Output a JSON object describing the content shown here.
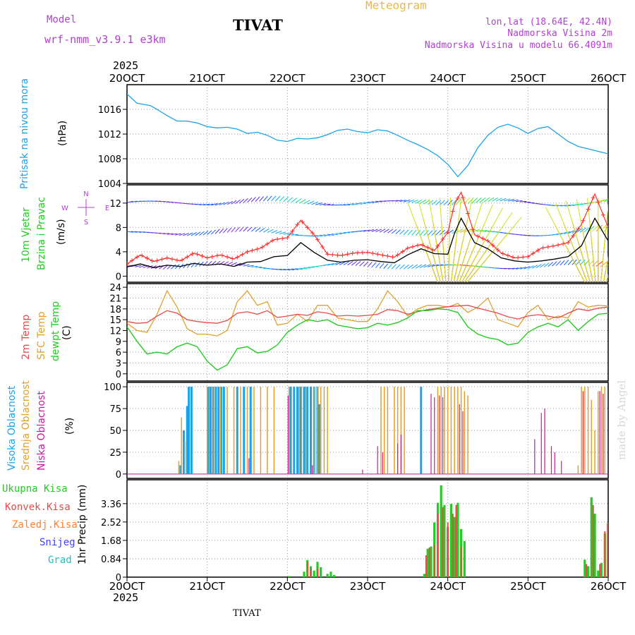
{
  "header": {
    "model_label": "Model",
    "model_name": "wrf-nmm_v3.9.1 e3km",
    "station": "TIVAT",
    "meteogram": "Meteogram",
    "lonlat": "lon,lat (18.64E, 42.4N)",
    "altitude": "Nadmorska Visina 2m",
    "model_altitude": "Nadmorska Visina u modelu 66.4091m",
    "year_top": "2025",
    "year_bottom": "2025",
    "footer_station": "TIVAT",
    "credit": "made by Angel"
  },
  "colors": {
    "pressure": "#1aa3e8",
    "wind_speed": "#000000",
    "gust": "#ff3030",
    "temp2m": "#e84a4a",
    "sfc": "#e0a030",
    "dewpt": "#22cc22",
    "high_cloud": "#1aa3e8",
    "mid_cloud": "#e0a030",
    "low_cloud": "#cc1aa0",
    "total_precip": "#22cc22",
    "conv_precip": "#e84a4a",
    "frozen": "#ff8030",
    "snow": "#4040ff",
    "hail": "#20c0c0",
    "label_purple": "#b040d0"
  },
  "chart_data": [
    {
      "type": "line",
      "name": "pressure",
      "title": "Pritisak na nivou mora",
      "ylabel": "(hPa)",
      "ylim": [
        1004,
        1020
      ],
      "yticks": [
        "1016",
        "1012",
        "1008",
        "1004"
      ],
      "xlim": [
        0,
        144
      ],
      "x": [
        0,
        1,
        3,
        5,
        7,
        9,
        12,
        15,
        18,
        21,
        24,
        27,
        30,
        33,
        36,
        39,
        42,
        45,
        48,
        51,
        54,
        57,
        60,
        63,
        66,
        69,
        72,
        75,
        78,
        81,
        84,
        87,
        90,
        93,
        96,
        99,
        102,
        105,
        108,
        111,
        114,
        117,
        120,
        123,
        126,
        129,
        132,
        135,
        138,
        141,
        144
      ],
      "values": [
        1018.5,
        1018.0,
        1017.0,
        1016.8,
        1016.6,
        1016.0,
        1015.0,
        1014.1,
        1014.1,
        1013.8,
        1013.2,
        1013.0,
        1013.1,
        1012.8,
        1012.1,
        1012.3,
        1011.8,
        1011.0,
        1010.8,
        1011.3,
        1011.2,
        1011.4,
        1011.9,
        1012.6,
        1012.8,
        1012.4,
        1012.2,
        1012.7,
        1012.5,
        1011.8,
        1011.0,
        1010.3,
        1009.5,
        1008.5,
        1007.1,
        1005.1,
        1006.9,
        1009.8,
        1011.8,
        1013.1,
        1013.6,
        1013.0,
        1012.1,
        1012.9,
        1013.2,
        1012.0,
        1010.8,
        1010.0,
        1009.6,
        1009.2,
        1008.8
      ]
    },
    {
      "type": "line",
      "name": "wind",
      "title": "10m Vjetar",
      "subtitle": "Brzina i Pravac",
      "ylabel": "(m/s)",
      "ylim": [
        -1,
        15
      ],
      "yticks": [
        "12",
        "8",
        "4",
        "0"
      ],
      "compass": {
        "n": "N",
        "s": "S",
        "w": "W",
        "e": "E"
      },
      "x": [
        0,
        4,
        8,
        12,
        16,
        20,
        24,
        28,
        32,
        36,
        40,
        44,
        48,
        52,
        56,
        60,
        64,
        68,
        72,
        76,
        80,
        84,
        88,
        92,
        96,
        98,
        100,
        104,
        108,
        112,
        116,
        120,
        124,
        128,
        132,
        136,
        140,
        144
      ],
      "series": [
        {
          "name": "speed",
          "values": [
            1.5,
            2.0,
            1.4,
            1.8,
            1.6,
            2.1,
            1.8,
            2.0,
            1.6,
            2.3,
            2.4,
            3.2,
            3.4,
            5.5,
            3.9,
            2.6,
            2.3,
            2.6,
            2.7,
            2.4,
            2.2,
            3.5,
            4.5,
            3.7,
            3.6,
            7.0,
            9.5,
            5.5,
            4.5,
            3.0,
            2.5,
            2.3,
            2.5,
            2.8,
            3.2,
            5.0,
            9.5,
            5.8
          ]
        },
        {
          "name": "gust",
          "values": [
            2.0,
            3.5,
            2.4,
            3.0,
            2.5,
            3.8,
            3.0,
            3.5,
            2.8,
            4.0,
            4.6,
            6.0,
            6.3,
            9.2,
            6.8,
            3.6,
            3.4,
            3.8,
            3.9,
            3.5,
            3.1,
            4.6,
            5.2,
            4.2,
            7.2,
            11.8,
            13.8,
            6.8,
            5.8,
            3.8,
            3.0,
            3.2,
            4.6,
            5.0,
            5.5,
            8.5,
            13.5,
            8.0
          ]
        }
      ]
    },
    {
      "type": "line",
      "name": "temperature",
      "labels": [
        "2m Temp",
        "SFC Temp",
        "dewpt Temp"
      ],
      "ylabel": "(C)",
      "ylim": [
        -2,
        25
      ],
      "yticks": [
        "24",
        "21",
        "18",
        "15",
        "12",
        "9",
        "6",
        "3",
        "0"
      ],
      "x": [
        0,
        3,
        6,
        9,
        12,
        15,
        18,
        21,
        24,
        27,
        30,
        33,
        36,
        39,
        42,
        45,
        48,
        51,
        54,
        57,
        60,
        63,
        66,
        69,
        72,
        75,
        78,
        81,
        84,
        87,
        90,
        93,
        96,
        99,
        102,
        105,
        108,
        111,
        114,
        117,
        120,
        123,
        126,
        129,
        132,
        135,
        138,
        141,
        144
      ],
      "series": [
        {
          "name": "2m Temp",
          "values": [
            14.5,
            14.0,
            14.2,
            16.0,
            17.5,
            16.8,
            15.0,
            14.5,
            14.2,
            14.0,
            14.8,
            16.8,
            17.2,
            16.5,
            17.5,
            15.6,
            16.0,
            16.5,
            16.2,
            17.2,
            16.8,
            16.0,
            16.2,
            16.0,
            16.2,
            16.5,
            17.8,
            17.5,
            16.5,
            17.2,
            17.8,
            18.2,
            18.6,
            18.8,
            19.0,
            18.2,
            17.5,
            16.8,
            15.8,
            15.2,
            16.0,
            16.4,
            16.0,
            15.5,
            16.8,
            18.0,
            17.5,
            18.2,
            18.5
          ]
        },
        {
          "name": "SFC Temp",
          "values": [
            14.0,
            12.0,
            11.5,
            16.5,
            23.0,
            18.5,
            12.5,
            11.0,
            11.0,
            10.5,
            12.0,
            20.0,
            23.0,
            19.0,
            20.0,
            13.5,
            14.0,
            16.5,
            14.5,
            19.0,
            19.0,
            15.5,
            15.0,
            14.5,
            14.5,
            18.0,
            23.0,
            20.0,
            16.0,
            18.0,
            19.0,
            19.0,
            18.5,
            19.5,
            17.0,
            18.5,
            21.0,
            15.0,
            14.0,
            13.0,
            17.0,
            19.0,
            15.0,
            16.0,
            15.5,
            20.0,
            18.5,
            19.0,
            18.8
          ]
        },
        {
          "name": "dewpt Temp",
          "values": [
            13.0,
            9.0,
            5.5,
            6.0,
            5.5,
            7.5,
            8.5,
            7.5,
            3.5,
            1.0,
            2.5,
            7.0,
            7.5,
            5.8,
            6.2,
            8.0,
            11.5,
            13.5,
            15.0,
            14.5,
            15.0,
            13.5,
            13.0,
            12.5,
            12.8,
            14.0,
            13.5,
            14.2,
            15.5,
            17.5,
            17.5,
            18.0,
            17.8,
            17.0,
            13.0,
            11.0,
            10.0,
            9.5,
            8.0,
            8.5,
            11.5,
            13.0,
            14.0,
            13.0,
            15.0,
            12.0,
            14.5,
            16.5,
            16.8
          ]
        }
      ]
    },
    {
      "type": "bar",
      "name": "clouds",
      "labels": [
        "Visoka Oblacnost",
        "Srednja Oblacnost",
        "Niska Oblacnost"
      ],
      "ylabel": "(%)",
      "ylim": [
        -5,
        105
      ],
      "yticks": [
        "100",
        "75",
        "50",
        "25",
        "0"
      ],
      "series": [
        {
          "name": "Visoka Oblacnost",
          "bars": [
            [
              16,
              10
            ],
            [
              17,
              50
            ],
            [
              18,
              78
            ],
            [
              18.5,
              100
            ],
            [
              19.3,
              100
            ],
            [
              24.3,
              100
            ],
            [
              25,
              100
            ],
            [
              25.8,
              100
            ],
            [
              26.6,
              100
            ],
            [
              27.4,
              100
            ],
            [
              28.2,
              100
            ],
            [
              29,
              100
            ],
            [
              33,
              100
            ],
            [
              35,
              100
            ],
            [
              37,
              100
            ],
            [
              49,
              100
            ],
            [
              50,
              100
            ],
            [
              51,
              100
            ],
            [
              52,
              100
            ],
            [
              53,
              100
            ],
            [
              54,
              100
            ],
            [
              55,
              100
            ],
            [
              56,
              100
            ],
            [
              57,
              100
            ],
            [
              57.5,
              80
            ],
            [
              88,
              100
            ]
          ]
        },
        {
          "name": "Srednja Oblacnost",
          "bars": [
            [
              15.5,
              15
            ],
            [
              16.3,
              65
            ],
            [
              17.3,
              38
            ],
            [
              24,
              100
            ],
            [
              26,
              100
            ],
            [
              28,
              100
            ],
            [
              30,
              100
            ],
            [
              32,
              100
            ],
            [
              34,
              100
            ],
            [
              36,
              100
            ],
            [
              38,
              100
            ],
            [
              40,
              100
            ],
            [
              42,
              100
            ],
            [
              44,
              100
            ],
            [
              48.5,
              100
            ],
            [
              51.5,
              100
            ],
            [
              53.5,
              100
            ],
            [
              56,
              100
            ],
            [
              57,
              100
            ],
            [
              58,
              100
            ],
            [
              59,
              100
            ],
            [
              60,
              100
            ],
            [
              76,
              100
            ],
            [
              77,
              100
            ],
            [
              78,
              100
            ],
            [
              80,
              100
            ],
            [
              81,
              100
            ],
            [
              82,
              100
            ],
            [
              83,
              100
            ],
            [
              93,
              100
            ],
            [
              94,
              100
            ],
            [
              95,
              100
            ],
            [
              96,
              100
            ],
            [
              97,
              100
            ],
            [
              98,
              100
            ],
            [
              99,
              100
            ],
            [
              100,
              100
            ],
            [
              101,
              95
            ],
            [
              102,
              90
            ],
            [
              135,
              10
            ],
            [
              136,
              100
            ],
            [
              137,
              100
            ],
            [
              138,
              100
            ],
            [
              139,
              85
            ],
            [
              140,
              50
            ],
            [
              141,
              95
            ],
            [
              142,
              100
            ],
            [
              143,
              100
            ]
          ]
        },
        {
          "name": "Niska Oblacnost",
          "bars": [
            [
              36.5,
              18
            ],
            [
              48.2,
              90
            ],
            [
              55.5,
              10
            ],
            [
              70.5,
              5
            ],
            [
              75,
              32
            ],
            [
              76.5,
              25
            ],
            [
              81,
              35
            ],
            [
              82,
              45
            ],
            [
              91,
              92
            ],
            [
              92,
              88
            ],
            [
              93.5,
              90
            ],
            [
              94.5,
              88
            ],
            [
              99.5,
              80
            ],
            [
              100.5,
              72
            ],
            [
              122,
              40
            ],
            [
              124,
              70
            ],
            [
              125,
              75
            ],
            [
              127,
              32
            ],
            [
              128,
              25
            ],
            [
              130,
              15
            ],
            [
              136.5,
              95
            ],
            [
              141.5,
              95
            ],
            [
              142.5,
              92
            ]
          ]
        }
      ]
    },
    {
      "type": "bar",
      "name": "precip",
      "labels": [
        "Ukupna Kisa",
        "Konvek.Kisa",
        "Zaledj.Kisa",
        "Snijeg",
        "Grad"
      ],
      "ylabel": "1hr Precip (mm)",
      "ylim": [
        0,
        4.45
      ],
      "yticks": [
        "3.36",
        "2.52",
        "1.68",
        "0.84",
        "0"
      ],
      "x": [
        0,
        24,
        48,
        72,
        96,
        120,
        144
      ],
      "xticks": [
        "20OCT",
        "21OCT",
        "22OCT",
        "23OCT",
        "24OCT",
        "25OCT",
        "26OCT"
      ],
      "series": [
        {
          "name": "Ukupna Kisa",
          "bars": [
            [
              48.5,
              0.05
            ],
            [
              53,
              0.25
            ],
            [
              54,
              0.78
            ],
            [
              55,
              0.5
            ],
            [
              56,
              0.3
            ],
            [
              57,
              0.7
            ],
            [
              58,
              0.45
            ],
            [
              60,
              0.15
            ],
            [
              61,
              0.25
            ],
            [
              62,
              0.1
            ],
            [
              89,
              0.15
            ],
            [
              90,
              1.3
            ],
            [
              91,
              1.4
            ],
            [
              92,
              2.5
            ],
            [
              93,
              3.4
            ],
            [
              94,
              4.2
            ],
            [
              95,
              3.3
            ],
            [
              96,
              2.3
            ],
            [
              97,
              3.35
            ],
            [
              98,
              2.75
            ],
            [
              99,
              3.4
            ],
            [
              100,
              2.2
            ],
            [
              101,
              1.65
            ],
            [
              137,
              0.8
            ],
            [
              138,
              0.5
            ],
            [
              139,
              3.65
            ],
            [
              140,
              2.9
            ],
            [
              141,
              0.3
            ],
            [
              142,
              0.65
            ],
            [
              143,
              2.0
            ],
            [
              144,
              2.5
            ]
          ]
        },
        {
          "name": "Konvek.Kisa",
          "bars": [
            [
              54,
              0.7
            ],
            [
              55,
              0.35
            ],
            [
              57,
              0.4
            ],
            [
              89.5,
              1.0
            ],
            [
              90.5,
              1.35
            ],
            [
              92,
              1.5
            ],
            [
              93,
              2.9
            ],
            [
              94.5,
              3.2
            ],
            [
              96,
              2.5
            ],
            [
              97.5,
              2.9
            ],
            [
              98.5,
              3.3
            ],
            [
              100,
              1.4
            ],
            [
              137.5,
              0.6
            ],
            [
              139.5,
              3.3
            ],
            [
              141.5,
              0.6
            ],
            [
              143,
              2.1
            ],
            [
              143.8,
              2.45
            ]
          ]
        }
      ]
    }
  ]
}
